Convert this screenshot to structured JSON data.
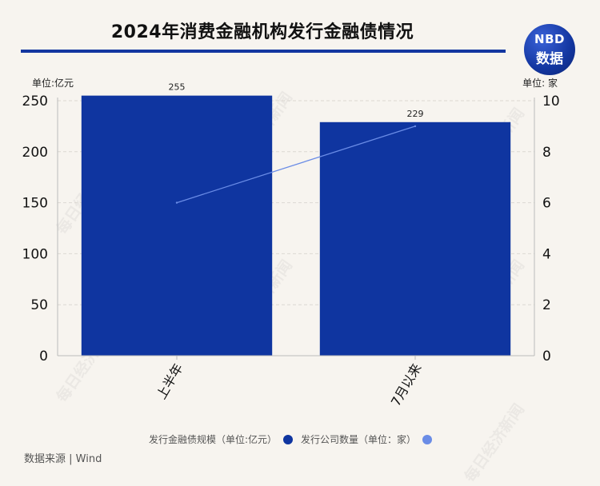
{
  "title": "2024年消费金融机构发行金融债情况",
  "logo": {
    "line1": "NBD",
    "line2": "数据"
  },
  "units": {
    "left": "单位:亿元",
    "right": "单位: 家"
  },
  "watermark": "每日经济新闻",
  "colors": {
    "bar": "#0f35a0",
    "line": "#6a8ce6",
    "title_rule": "#1336a0"
  },
  "chart_data": {
    "type": "bar",
    "categories": [
      "上半年",
      "7月以来"
    ],
    "series": [
      {
        "name": "发行金融债规模（单位:亿元）",
        "type": "bar",
        "axis": "left",
        "values": [
          255,
          229
        ],
        "data_labels": [
          "255",
          "229"
        ]
      },
      {
        "name": "发行公司数量（单位：家）",
        "type": "line",
        "axis": "right",
        "values": [
          6,
          9
        ]
      }
    ],
    "y_left": {
      "ylim": [
        0,
        250
      ],
      "ticks": [
        "0",
        "50",
        "100",
        "150",
        "200",
        "250"
      ]
    },
    "y_right": {
      "ylim": [
        0,
        10
      ],
      "ticks": [
        "0",
        "2",
        "4",
        "6",
        "8",
        "10"
      ]
    },
    "grid": true,
    "legend_position": "bottom"
  },
  "legend": [
    {
      "label": "发行金融债规模（单位:亿元）",
      "color": "#0f35a0"
    },
    {
      "label": "发行公司数量（单位：家）",
      "color": "#6a8ce6"
    }
  ],
  "source": "数据来源 | Wind"
}
